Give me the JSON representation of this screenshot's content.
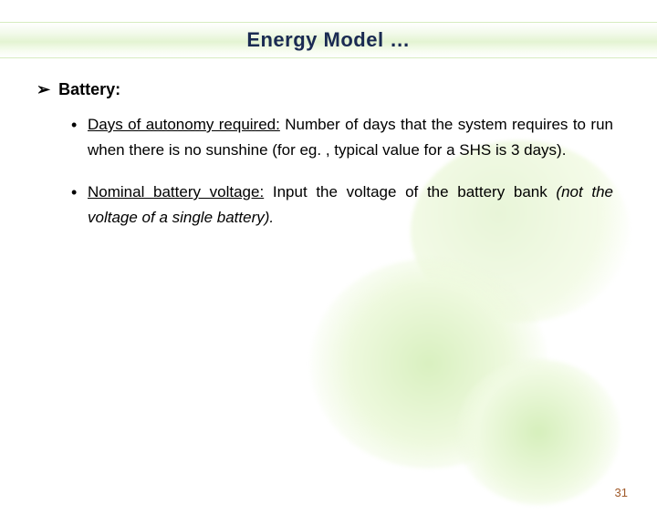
{
  "title": "Energy Model …",
  "section_heading": "Battery:",
  "bullets": [
    {
      "lead": "Days of autonomy required:",
      "rest": " Number of days that the system requires to run when there is no sunshine (for eg. , typical value for a SHS is 3 days).",
      "italic_part": ""
    },
    {
      "lead": "Nominal battery voltage:",
      "rest": " Input the voltage of the battery bank ",
      "italic_part": "(not the voltage of a single battery)."
    }
  ],
  "page_number": "31",
  "colors": {
    "title_text": "#1a2a52",
    "page_num": "#a05a2a",
    "blob_light": "#e8f5d8",
    "blob_mid": "#d9f0c0"
  }
}
